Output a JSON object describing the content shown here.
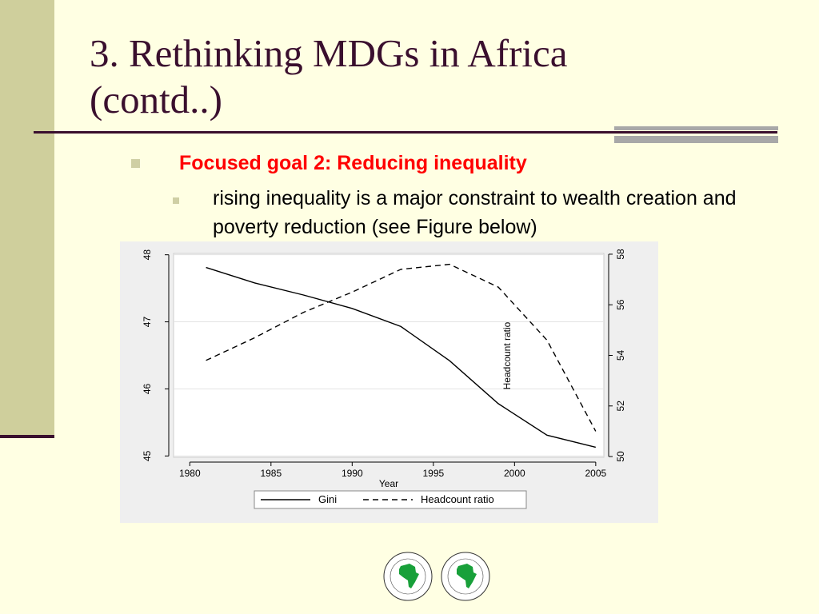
{
  "title": "3. Rethinking MDGs in Africa (contd..)",
  "bullets": [
    {
      "text": "Focused goal 2: Reducing inequality",
      "color": "#ff0000"
    },
    {
      "text": "rising inequality is a major constraint to wealth creation and poverty reduction (see Figure below)"
    }
  ],
  "chart_data": {
    "type": "line",
    "xlabel": "Year",
    "xlim": [
      1979,
      2005.5
    ],
    "xticks": [
      1980,
      1985,
      1990,
      1995,
      2000,
      2005
    ],
    "y_left": {
      "label": "",
      "ylim": [
        44.98,
        48.02
      ],
      "ticks": [
        45,
        46,
        47,
        48
      ]
    },
    "y_right": {
      "label": "Headcount ratio",
      "ylim": [
        49.97,
        58.03
      ],
      "ticks": [
        50,
        52,
        54,
        56,
        58
      ]
    },
    "grid": true,
    "legend": "bottom",
    "series": [
      {
        "name": "Gini",
        "axis": "left",
        "style": "solid",
        "x": [
          1981,
          1984,
          1987,
          1990,
          1993,
          1996,
          1999,
          2002,
          2005
        ],
        "y": [
          47.81,
          47.58,
          47.4,
          47.2,
          46.93,
          46.42,
          45.78,
          45.31,
          45.13
        ]
      },
      {
        "name": "Headcount ratio",
        "axis": "right",
        "style": "dashed",
        "x": [
          1981,
          1984,
          1987,
          1990,
          1993,
          1996,
          1999,
          2002,
          2005
        ],
        "y": [
          53.8,
          54.7,
          55.7,
          56.5,
          57.4,
          57.6,
          56.7,
          54.6,
          51.0
        ]
      }
    ]
  }
}
